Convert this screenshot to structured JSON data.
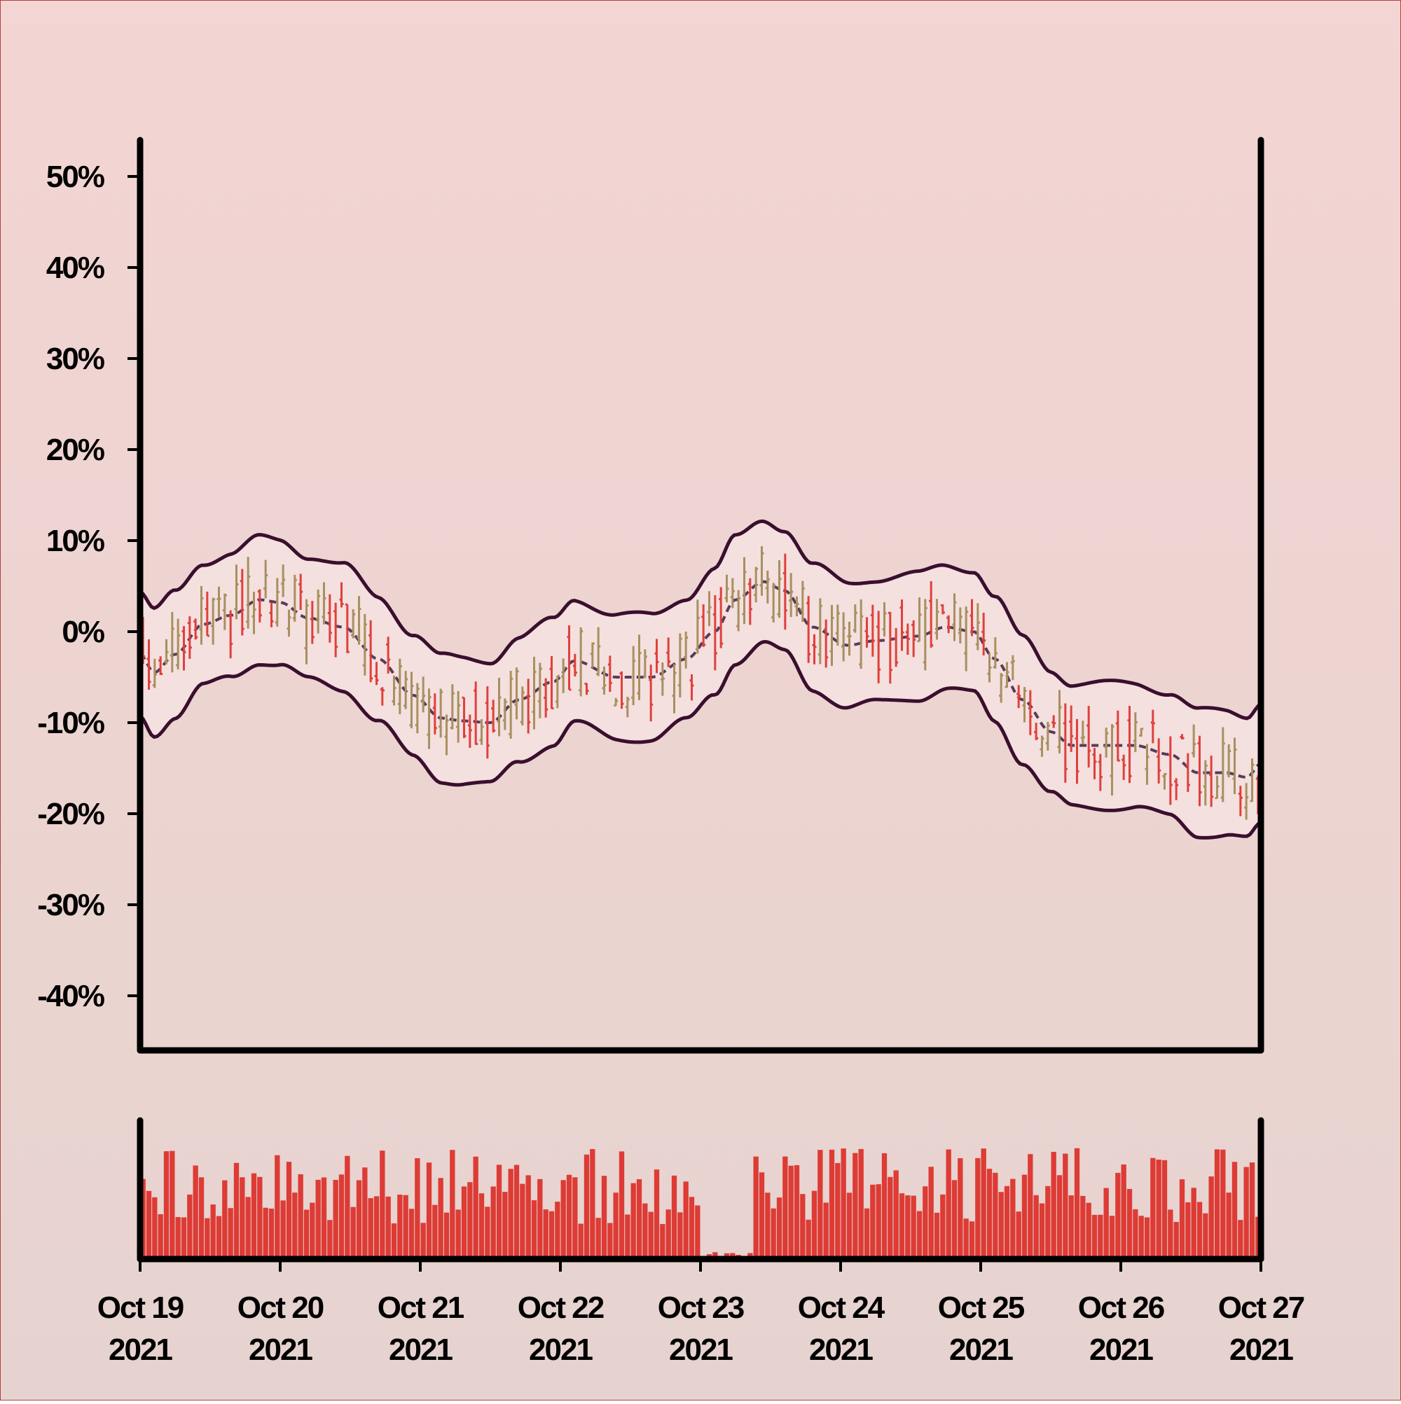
{
  "colors": {
    "background_top": "#f3d5d3",
    "background_bottom": "#e6d3cf",
    "up_bar": "#a89060",
    "down_bar": "#e0403c",
    "band_line": "#3a0f2e",
    "band_fill": "#f5e2e2",
    "mid_line": "#5a3a5a",
    "volume": "#dd3b35",
    "axis": "#000000"
  },
  "chart_data": [
    {
      "type": "ohlc",
      "x_start": "2021-10-19",
      "x_end": "2021-10-27",
      "bars_per_day": 24,
      "ylim": [
        -46,
        54
      ],
      "y_ticks": [
        50,
        40,
        30,
        20,
        10,
        0,
        -10,
        -20,
        -30,
        -40
      ],
      "y_tick_labels": [
        "50%",
        "40%",
        "30%",
        "20%",
        "10%",
        "0%",
        "-10%",
        "-20%",
        "-30%",
        "-40%"
      ],
      "x_tick_labels": [
        [
          "Oct 19",
          "2021"
        ],
        [
          "Oct 20",
          "2021"
        ],
        [
          "Oct 21",
          "2021"
        ],
        [
          "Oct 22",
          "2021"
        ],
        [
          "Oct 23",
          "2021"
        ],
        [
          "Oct 24",
          "2021"
        ],
        [
          "Oct 25",
          "2021"
        ],
        [
          "Oct 26",
          "2021"
        ],
        [
          "Oct 27",
          "2021"
        ]
      ],
      "bands": {
        "offset": 6.8,
        "center_knots_days": [
          0,
          0.1,
          0.25,
          0.45,
          0.65,
          0.85,
          1.0,
          1.2,
          1.45,
          1.7,
          1.95,
          2.15,
          2.3,
          2.5,
          2.7,
          2.95,
          3.1,
          3.4,
          3.65,
          3.9,
          4.1,
          4.25,
          4.45,
          4.6,
          4.8,
          5.05,
          5.25,
          5.55,
          5.75,
          5.95,
          6.1,
          6.3,
          6.5,
          6.65,
          6.85,
          7.1,
          7.35,
          7.55,
          7.75,
          7.9,
          8.0
        ],
        "center_knots_values": [
          -2.5,
          -4.5,
          -2.5,
          0.8,
          1.8,
          3.5,
          3.2,
          1.5,
          0.5,
          -3,
          -7,
          -9.5,
          -9.8,
          -10,
          -7.5,
          -5.5,
          -3.2,
          -5,
          -5,
          -3,
          0,
          3.5,
          5.5,
          4.5,
          0.5,
          -1.5,
          -1,
          -0.5,
          0.5,
          0,
          -3,
          -7.5,
          -11,
          -12.5,
          -12.5,
          -12.5,
          -13.5,
          -15.5,
          -15.5,
          -16,
          -14.5
        ]
      },
      "volume": {
        "max": 100,
        "ylim": [
          0,
          100
        ]
      }
    }
  ]
}
